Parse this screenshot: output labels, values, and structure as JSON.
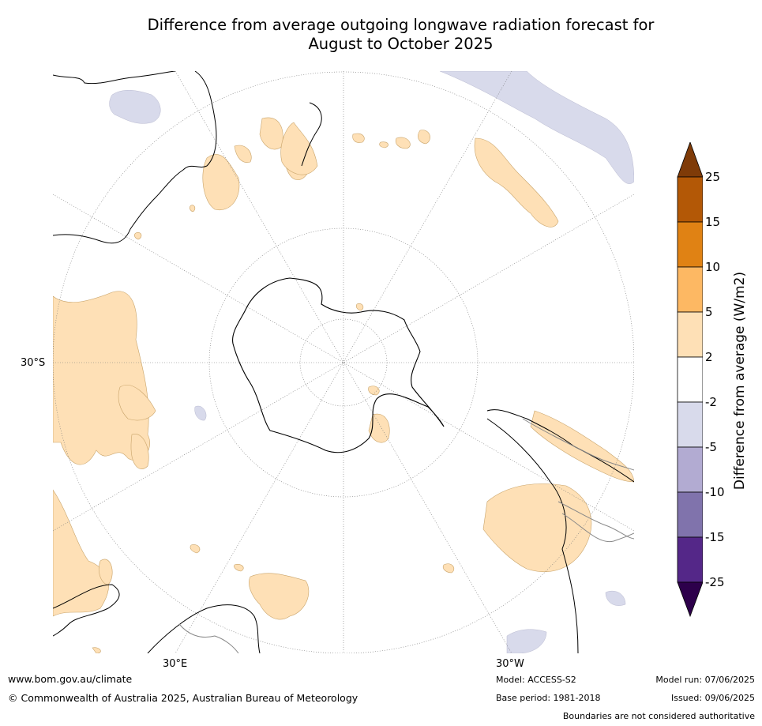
{
  "title_line1": "Difference from average outgoing longwave radiation forecast for",
  "title_line2": "August to October 2025",
  "colorbar": {
    "label": "Difference from average (W/m2)",
    "ticks": [
      "25",
      "15",
      "10",
      "5",
      "2",
      "-2",
      "-5",
      "-10",
      "-15",
      "-25"
    ],
    "colors": [
      "#7f3b08",
      "#b35806",
      "#e08214",
      "#fdb863",
      "#fee0b6",
      "#ffffff",
      "#d8daeb",
      "#b2abd2",
      "#8073ac",
      "#542788",
      "#2d004b"
    ]
  },
  "map": {
    "lat_label": "30°S",
    "lon_label_left": "30°E",
    "lon_label_right": "30°W",
    "positive_color": "#fee0b6",
    "negative_color": "#d8daeb"
  },
  "footer": {
    "website": "www.bom.gov.au/climate",
    "copyright": "© Commonwealth of Australia 2025, Australian Bureau of Meteorology",
    "model": "Model: ACCESS-S2",
    "base_period": "Base period: 1981-2018",
    "model_run": "Model run: 07/06/2025",
    "issued": "Issued: 09/06/2025",
    "disclaimer": "Boundaries are not considered authoritative"
  }
}
